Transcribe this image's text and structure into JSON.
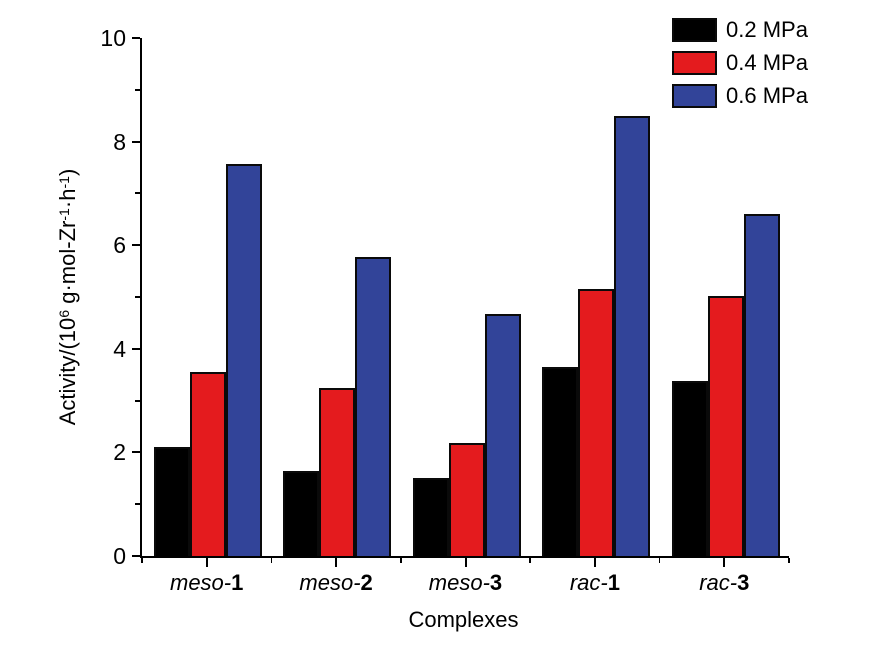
{
  "chart_data": {
    "type": "bar",
    "title": "",
    "xlabel": "Complexes",
    "ylabel": "Activity/(10^6 g·mol-Zr^-1·h^-1)",
    "ylabel_parts": [
      [
        "t",
        "Activity/(10"
      ],
      [
        "sup",
        "6"
      ],
      [
        "t",
        " g·mol-Zr"
      ],
      [
        "sup",
        "-1"
      ],
      [
        "t",
        "·h"
      ],
      [
        "sup",
        "-1"
      ],
      [
        "t",
        ")"
      ]
    ],
    "categories": [
      "meso-1",
      "meso-2",
      "meso-3",
      "rac-1",
      "rac-3"
    ],
    "category_labels": [
      {
        "italic": "meso-",
        "bold": "1"
      },
      {
        "italic": "meso-",
        "bold": "2"
      },
      {
        "italic": "meso-",
        "bold": "3"
      },
      {
        "italic": "rac-",
        "bold": "1"
      },
      {
        "italic": "rac-",
        "bold": "3"
      }
    ],
    "series": [
      {
        "name": "0.2 MPa",
        "color": "#000000",
        "values": [
          2.1,
          1.65,
          1.5,
          3.65,
          3.38
        ]
      },
      {
        "name": "0.4 MPa",
        "color": "#e41b1e",
        "values": [
          3.55,
          3.25,
          2.18,
          5.15,
          5.02
        ]
      },
      {
        "name": "0.6 MPa",
        "color": "#324499",
        "values": [
          7.57,
          5.78,
          4.68,
          8.5,
          6.6
        ]
      }
    ],
    "ylim": [
      0,
      10
    ],
    "y_major_ticks": [
      0,
      2,
      4,
      6,
      8,
      10
    ],
    "y_minor_ticks": [
      1,
      3,
      5,
      7,
      9
    ],
    "legend_position": "top-right",
    "grid": false,
    "background": "#ffffff",
    "axis_color": "#000000"
  }
}
